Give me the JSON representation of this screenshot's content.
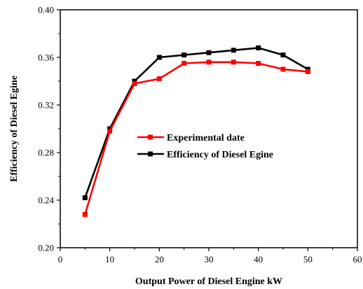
{
  "chart_data": {
    "type": "line",
    "title": "",
    "xlabel": "Output Power of Diesel Engine kW",
    "ylabel": "Efficiency of Diesel Egine",
    "xlim": [
      0,
      60
    ],
    "ylim": [
      0.2,
      0.4
    ],
    "x_ticks": [
      0,
      10,
      20,
      30,
      40,
      50,
      60
    ],
    "x_tick_labels": [
      "0",
      "10",
      "20",
      "30",
      "40",
      "50",
      "60"
    ],
    "y_ticks": [
      0.2,
      0.24,
      0.28,
      0.32,
      0.36,
      0.4
    ],
    "y_tick_labels": [
      "0.20",
      "0.24",
      "0.28",
      "0.32",
      "0.36",
      "0.40"
    ],
    "grid": false,
    "legend_position": "center-right",
    "x": [
      5,
      10,
      15,
      20,
      25,
      30,
      35,
      40,
      45,
      50
    ],
    "series": [
      {
        "name": "Experimental date",
        "color": "#ff0000",
        "marker": "square",
        "values": [
          0.228,
          0.298,
          0.338,
          0.342,
          0.355,
          0.356,
          0.356,
          0.355,
          0.35,
          0.348
        ]
      },
      {
        "name": "Efficiency of Diesel Egine",
        "color": "#000000",
        "marker": "square",
        "values": [
          0.242,
          0.3,
          0.34,
          0.36,
          0.362,
          0.364,
          0.366,
          0.368,
          0.362,
          0.35
        ]
      }
    ]
  }
}
